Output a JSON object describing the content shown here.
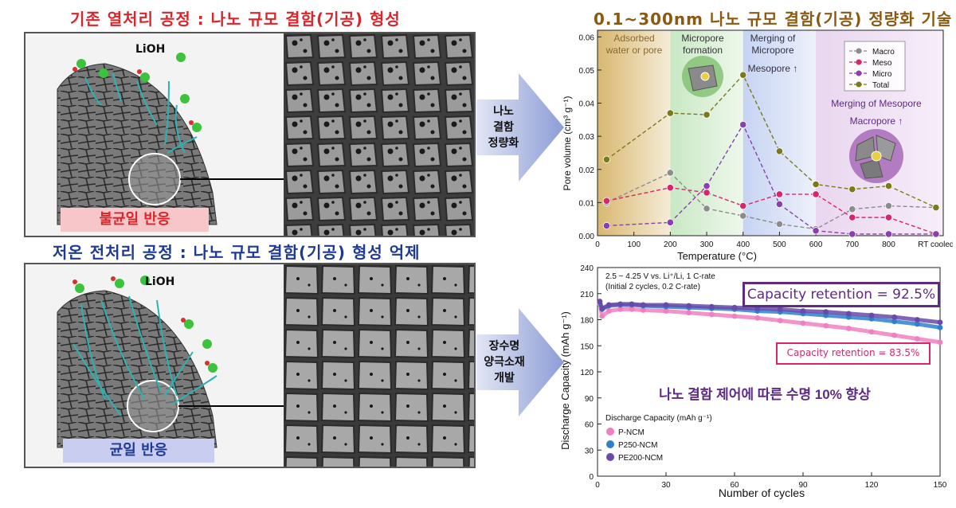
{
  "top_title": "기존 열처리 공정 : 나노 규모 결함(기공) 형성",
  "bottom_title": "저온 전처리 공정 : 나노 규모 결함(기공) 형성 억제",
  "right_title": "0.1~300nm 나노 규모 결함(기공) 정량화 기술",
  "top_panel": {
    "lioh": "LiOH",
    "badge": "불균일 반응"
  },
  "bottom_panel": {
    "lioh": "LiOH",
    "badge": "균일 반응"
  },
  "arrow_top": {
    "line1": "나노",
    "line2": "결함",
    "line3": "정량화"
  },
  "arrow_bottom": {
    "line1": "장수명",
    "line2": "양극소재",
    "line3": "개발"
  },
  "colors": {
    "macro": "#8c8c8c",
    "meso": "#d8266c",
    "micro": "#8a3fae",
    "total": "#7a7a1a",
    "p_ncm": "#f080c0",
    "p250": "#2f7fd0",
    "pe200": "#6a4aa8"
  },
  "pore_chart": {
    "region_labels": {
      "r1_line1": "Adsorbed",
      "r1_line2": "water or pore",
      "r2_line1": "Micropore",
      "r2_line2": "formation",
      "r3_line1": "Merging of",
      "r3_line2": "Micropore",
      "r3_line3": "Mesopore ↑",
      "r4_line1": "Merging of Mesopore",
      "r4_line2": "Macropore ↑"
    },
    "xlabel": "Temperature (°C)",
    "ylabel": "Pore volume (cm³ g⁻¹)"
  },
  "capacity_chart": {
    "conditions_line1": "2.5 ~ 4.25 V vs. Li⁺/Li, 1 C-rate",
    "conditions_line2": "(Initial 2 cycles, 0.2 C-rate)",
    "retention_high": "Capacity retention = 92.5%",
    "retention_low": "Capacity retention = 83.5%",
    "headline": "나노 결함 제어에 따른 수명 10% 향상",
    "legend_title": "Discharge Capacity (mAh g⁻¹)",
    "xlabel": "Number of cycles",
    "ylabel": "Discharge Capacity (mAh g⁻¹)"
  },
  "chart_data": [
    {
      "type": "line",
      "title": "",
      "xlabel": "Temperature (°C)",
      "ylabel": "Pore volume (cm³ g⁻¹)",
      "x_tick_labels": [
        "0",
        "100",
        "200",
        "300",
        "400",
        "500",
        "600",
        "700",
        "800",
        "RT cooled"
      ],
      "y_tick_labels": [
        "0.00",
        "0.01",
        "0.02",
        "0.03",
        "0.04",
        "0.05",
        "0.06"
      ],
      "xlim": [
        0,
        950
      ],
      "ylim": [
        0,
        0.062
      ],
      "x": [
        25,
        200,
        300,
        400,
        500,
        600,
        700,
        800,
        930
      ],
      "series": [
        {
          "name": "Macro",
          "values": [
            0.01,
            0.019,
            0.0082,
            0.006,
            0.0035,
            0.002,
            0.008,
            0.009,
            0.0085
          ]
        },
        {
          "name": "Meso",
          "values": [
            0.0105,
            0.0145,
            0.013,
            0.009,
            0.0125,
            0.0125,
            0.0055,
            0.0055,
            0.0005
          ]
        },
        {
          "name": "Micro",
          "values": [
            0.003,
            0.004,
            0.015,
            0.0335,
            0.0095,
            0.0015,
            0.0005,
            0.0005,
            0.0005
          ]
        },
        {
          "name": "Total",
          "values": [
            0.023,
            0.037,
            0.0365,
            0.0485,
            0.0255,
            0.0155,
            0.014,
            0.015,
            0.0085
          ]
        }
      ],
      "legend_position": "top-right"
    },
    {
      "type": "scatter",
      "title": "",
      "xlabel": "Number of cycles",
      "ylabel": "Discharge Capacity (mAh g⁻¹)",
      "x_tick_labels": [
        "0",
        "30",
        "60",
        "90",
        "120",
        "150"
      ],
      "y_tick_labels": [
        "0",
        "30",
        "60",
        "90",
        "120",
        "150",
        "180",
        "210",
        "240"
      ],
      "xlim": [
        0,
        150
      ],
      "ylim": [
        0,
        240
      ],
      "x": [
        1,
        2,
        5,
        10,
        15,
        20,
        30,
        40,
        50,
        60,
        70,
        80,
        90,
        100,
        110,
        120,
        130,
        140,
        150
      ],
      "series": [
        {
          "name": "P-NCM",
          "values": [
            198,
            184,
            190,
            192,
            192,
            191,
            190,
            188,
            186,
            184,
            182,
            179,
            176,
            173,
            170,
            166,
            162,
            158,
            154
          ]
        },
        {
          "name": "P250-NCM",
          "values": [
            200,
            192,
            196,
            197,
            197,
            196,
            195,
            194,
            193,
            192,
            190,
            189,
            187,
            185,
            183,
            181,
            178,
            175,
            171
          ]
        },
        {
          "name": "PE200-NCM",
          "values": [
            201,
            193,
            197,
            198,
            198,
            197,
            197,
            196,
            195,
            194,
            193,
            192,
            190,
            189,
            187,
            185,
            183,
            180,
            177
          ]
        }
      ],
      "legend_position": "bottom-left"
    }
  ]
}
